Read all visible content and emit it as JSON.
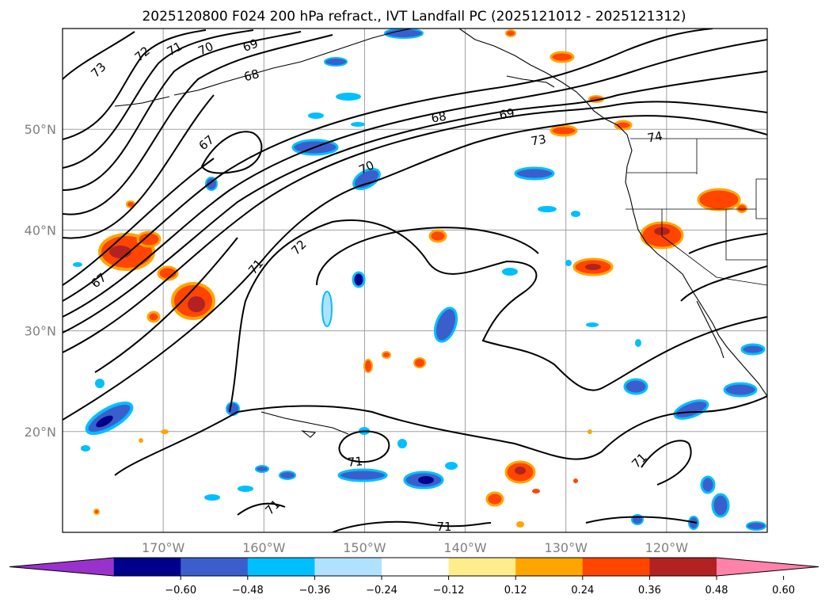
{
  "title": "2025120800 F024 200 hPa refract., IVT Landfall PC (2025121012 - 2025121312)",
  "map": {
    "lon_range": [
      180,
      110
    ],
    "lat_range": [
      10,
      60
    ],
    "lon_ticks": [
      {
        "value": 170,
        "label": "170°W"
      },
      {
        "value": 160,
        "label": "160°W"
      },
      {
        "value": 150,
        "label": "150°W"
      },
      {
        "value": 140,
        "label": "140°W"
      },
      {
        "value": 130,
        "label": "130°W"
      },
      {
        "value": 120,
        "label": "120°W"
      }
    ],
    "lat_ticks": [
      {
        "value": 50,
        "label": "50°N"
      },
      {
        "value": 40,
        "label": "40°N"
      },
      {
        "value": 30,
        "label": "30°N"
      },
      {
        "value": 20,
        "label": "20°N"
      }
    ],
    "grid": true,
    "contour_labels": [
      "73",
      "72",
      "71",
      "70",
      "69",
      "68",
      "67",
      "68",
      "69",
      "73",
      "74",
      "70",
      "71",
      "72",
      "67",
      "71",
      "71",
      "71",
      "71"
    ]
  },
  "colorbar": {
    "ticks": [
      "−0.60",
      "−0.48",
      "−0.36",
      "−0.24",
      "−0.12",
      "0.12",
      "0.24",
      "0.36",
      "0.48",
      "0.60"
    ],
    "colors": [
      "#9932cc",
      "#00008b",
      "#3a5fcd",
      "#00bfff",
      "#b0e2ff",
      "#ffffff",
      "#ffec8b",
      "#ffa500",
      "#ff4500",
      "#b22222",
      "#ff82ab"
    ]
  }
}
